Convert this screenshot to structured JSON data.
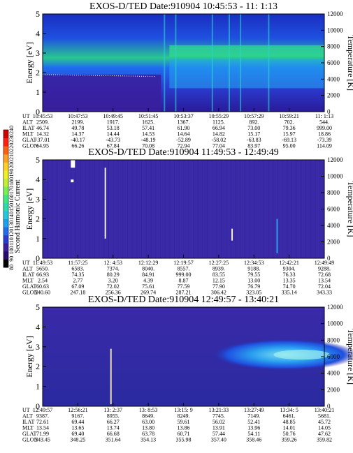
{
  "chart_data": [
    {
      "type": "heatmap",
      "title": "EXOS-D/TED   Date:910904  10:45:53 - 11: 1:13",
      "ylabel": "Energy [eV]",
      "y2label": "Temperature [K]",
      "ylim": [
        0,
        5
      ],
      "y2lim": [
        0,
        12000
      ],
      "yticks": [
        "0",
        "1",
        "2",
        "3",
        "4",
        "5"
      ],
      "y2ticks": [
        "0",
        "2000",
        "4000",
        "6000",
        "8000",
        "10000",
        "12000"
      ],
      "orbit_labels": [
        "UT",
        "ALT",
        "ILAT",
        "MLT",
        "GLAT",
        "GLON"
      ],
      "orbit_table": [
        [
          "10:45:53",
          "10:47:53",
          "10:49:45",
          "10:51:45",
          "10:53:37",
          "10:55:29",
          "10:57:29",
          "10:59:21",
          "11: 1:13"
        ],
        [
          "2509.",
          "2199.",
          "1917.",
          "1625.",
          "1367.",
          "1125.",
          "892.",
          "702.",
          "544."
        ],
        [
          "46.74",
          "49.78",
          "53.18",
          "57.41",
          "61.90",
          "66.94",
          "73.00",
          "79.36",
          "999.00"
        ],
        [
          "14.32",
          "14.37",
          "14.44",
          "14.53",
          "14.64",
          "14.82",
          "15.17",
          "15.97",
          "18.86"
        ],
        [
          "-37.01",
          "-40.17",
          "-43.73",
          "-48.19",
          "-52.89",
          "-58.02",
          "-63.83",
          "-69.13",
          "-73.39"
        ],
        [
          "64.95",
          "66.26",
          "67.84",
          "70.08",
          "72.94",
          "77.04",
          "83.97",
          "95.00",
          "114.09"
        ]
      ]
    },
    {
      "type": "heatmap",
      "title": "EXOS-D/TED   Date:910904  11:49:53 - 12:49:49",
      "ylabel": "Energy [eV]",
      "y2label": "Temperature [K]",
      "ylim": [
        0,
        5
      ],
      "y2lim": [
        0,
        12000
      ],
      "yticks": [
        "0",
        "1",
        "2",
        "3",
        "4",
        "5"
      ],
      "y2ticks": [
        "0",
        "2000",
        "4000",
        "6000",
        "8000",
        "10000",
        "12000"
      ],
      "orbit_labels": [
        "UT",
        "ALT",
        "ILAT",
        "MLT",
        "GLAT",
        "GLON"
      ],
      "orbit_table": [
        [
          "11:49:53",
          "11:57:25",
          "12: 4:53",
          "12:12:29",
          "12:19:57",
          "12:27:25",
          "12:34:53",
          "12:42:21",
          "12:49:49"
        ],
        [
          "5650.",
          "6583.",
          "7374.",
          "8040.",
          "8557.",
          "8939.",
          "9188.",
          "9304.",
          "9288."
        ],
        [
          "66.93",
          "74.35",
          "80.29",
          "84.91",
          "999.00",
          "83.55",
          "79.55",
          "76.33",
          "72.68"
        ],
        [
          "2.54",
          "2.77",
          "3.20",
          "4.39",
          "8.87",
          "12.15",
          "13.00",
          "13.35",
          "13.54"
        ],
        [
          "60.63",
          "67.09",
          "72.02",
          "75.61",
          "77.59",
          "77.90",
          "76.79",
          "74.70",
          "72.04"
        ],
        [
          "240.60",
          "247.18",
          "256.36",
          "269.74",
          "287.21",
          "306.42",
          "323.05",
          "335.14",
          "343.33"
        ]
      ]
    },
    {
      "type": "heatmap",
      "title": "EXOS-D/TED   Date:910904  12:49:57 - 13:40:21",
      "ylabel": "Energy [eV]",
      "y2label": "Temperature [K]",
      "ylim": [
        0,
        5
      ],
      "y2lim": [
        0,
        12000
      ],
      "yticks": [
        "0",
        "1",
        "2",
        "3",
        "4",
        "5"
      ],
      "y2ticks": [
        "0",
        "2000",
        "4000",
        "6000",
        "8000",
        "10000",
        "12000"
      ],
      "orbit_labels": [
        "UT",
        "ALT",
        "ILAT",
        "MLT",
        "GLAT",
        "GLON"
      ],
      "orbit_table": [
        [
          "12:49:57",
          "12:56:21",
          "13: 2:37",
          "13: 8:53",
          "13:15: 9",
          "13:21:33",
          "13:27:49",
          "13:34: 5",
          "13:40:21"
        ],
        [
          "9387.",
          "9167.",
          "8955.",
          "8649.",
          "8249.",
          "7745.",
          "7149.",
          "6461.",
          "5681."
        ],
        [
          "72.61",
          "69.44",
          "66.27",
          "63.00",
          "59.61",
          "56.02",
          "52.41",
          "48.85",
          "45.72"
        ],
        [
          "13.54",
          "13.65",
          "13.74",
          "13.80",
          "13.86",
          "13.91",
          "13.96",
          "14.01",
          "14.05"
        ],
        [
          "71.99",
          "69.40",
          "66.68",
          "63.78",
          "60.71",
          "57.44",
          "54.11",
          "50.76",
          "47.62"
        ],
        [
          "343.45",
          "348.25",
          "351.64",
          "354.13",
          "355.98",
          "357.40",
          "358.46",
          "359.26",
          "359.82"
        ]
      ]
    }
  ],
  "colorbar": {
    "label": "Second Harmonic Current",
    "ticks": [
      "80",
      "90",
      "100",
      "110",
      "120",
      "130",
      "140",
      "150",
      "160",
      "170",
      "180",
      "190",
      "200",
      "210",
      "220",
      "230",
      "240"
    ],
    "colors": [
      "#000000",
      "#2a0a6a",
      "#3a1e9c",
      "#2a3cd0",
      "#1f6cf0",
      "#1aa0f0",
      "#20c8e0",
      "#28dcb0",
      "#40e880",
      "#78f050",
      "#c0f030",
      "#f0f020",
      "#ffd020",
      "#ffa020",
      "#ff6010",
      "#ff2010",
      "#d00000"
    ]
  }
}
